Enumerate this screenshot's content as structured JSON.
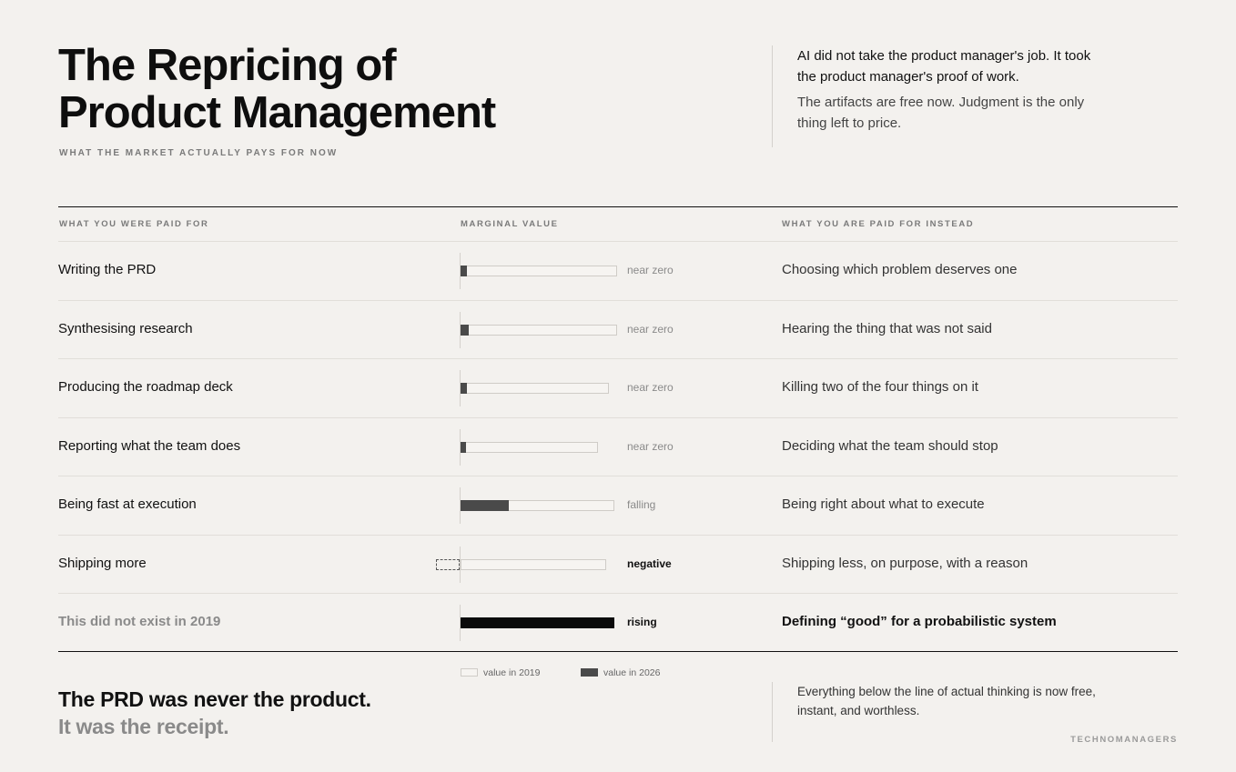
{
  "header": {
    "title_line1": "The Repricing of",
    "title_line2": "Product Management",
    "subtitle": "WHAT THE MARKET ACTUALLY PAYS FOR NOW"
  },
  "intro": {
    "lead": "AI did not take the product manager's job. It took the product manager's proof of work.",
    "sub": "The artifacts are free now. Judgment is the only thing left to price."
  },
  "columns": {
    "old": "WHAT YOU WERE PAID FOR",
    "value": "MARGINAL VALUE",
    "new": "WHAT YOU ARE PAID FOR INSTEAD"
  },
  "rows": [
    {
      "old": "Writing the PRD",
      "value_2019": 1.0,
      "value_2026": 0.04,
      "label": "near zero",
      "new": "Choosing which problem deserves one"
    },
    {
      "old": "Synthesising research",
      "value_2019": 1.0,
      "value_2026": 0.05,
      "label": "near zero",
      "new": "Hearing the thing that was not said"
    },
    {
      "old": "Producing the roadmap deck",
      "value_2019": 0.95,
      "value_2026": 0.04,
      "label": "near zero",
      "new": "Killing two of the four things on it"
    },
    {
      "old": "Reporting what the team does",
      "value_2019": 0.88,
      "value_2026": 0.03,
      "label": "near zero",
      "new": "Deciding what the team should stop"
    },
    {
      "old": "Being fast at execution",
      "value_2019": 0.98,
      "value_2026": 0.31,
      "label": "falling",
      "new": "Being right about what to execute"
    },
    {
      "old": "Shipping more",
      "value_2019": 0.93,
      "value_2026": -0.15,
      "label": "negative",
      "new": "Shipping less, on purpose, with a reason"
    },
    {
      "old": "This did not exist in 2019",
      "value_2019": 0,
      "value_2026": 0.98,
      "label": "rising",
      "new": "Defining “good” for a probabilistic system"
    }
  ],
  "legend": {
    "old": "value in 2019",
    "new": "value in 2026"
  },
  "closing": {
    "line1": "The PRD was never the product.",
    "line2": "It was the receipt."
  },
  "note": "Everything below the line of actual thinking is now free, instant, and worthless.",
  "brand": "TECHNOMANAGERS",
  "colors": {
    "background": "#f3f1ee",
    "bar_2026": "#4a4a4a",
    "bar_rising": "#0b0b0b",
    "track": "#f6f4f1"
  }
}
